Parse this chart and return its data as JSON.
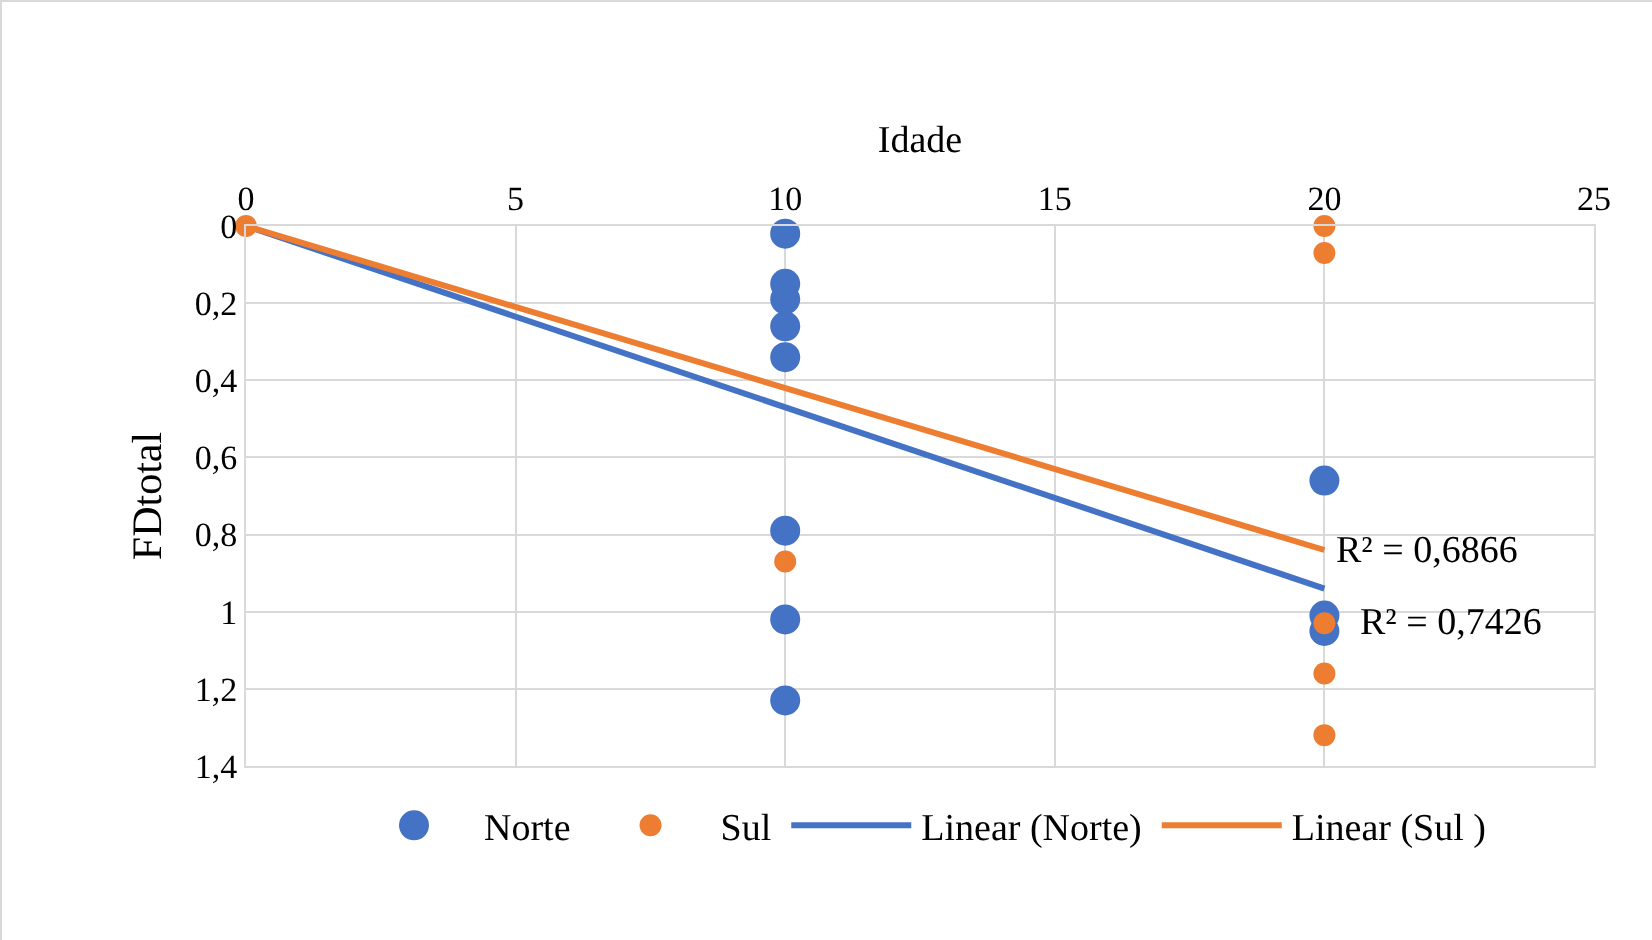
{
  "chart_data": {
    "type": "scatter",
    "xlabel": "Idade",
    "ylabel": "FDtotal",
    "xlim": [
      0,
      25
    ],
    "xticks": [
      0,
      5,
      10,
      15,
      20,
      25
    ],
    "ylim": [
      1.4,
      0
    ],
    "yticks": [
      0,
      {
        "value": 0.2,
        "label": "0,2"
      },
      {
        "value": 0.4,
        "label": "0,4"
      },
      {
        "value": 0.6,
        "label": "0,6"
      },
      {
        "value": 0.8,
        "label": "0,8"
      },
      1,
      {
        "value": 1.2,
        "label": "1,2"
      },
      {
        "value": 1.4,
        "label": "1,4"
      }
    ],
    "grid": true,
    "legend": "bottom",
    "series": [
      {
        "name": "Norte",
        "color": "#4472c4",
        "marker": "circle",
        "x": [
          10,
          10,
          10,
          10,
          10,
          10,
          10,
          10,
          20,
          20,
          20
        ],
        "values": [
          0.02,
          0.15,
          0.19,
          0.26,
          0.34,
          0.79,
          1.02,
          1.23,
          0.66,
          1.01,
          1.05
        ]
      },
      {
        "name": "Sul",
        "color": "#ed7d31",
        "marker": "circle",
        "x": [
          0,
          10,
          20,
          20,
          20,
          20,
          20
        ],
        "values": [
          0,
          0.87,
          0,
          0.07,
          1.03,
          1.16,
          1.32
        ]
      },
      {
        "name": "Linear (Norte)",
        "type": "line",
        "color": "#4472c4",
        "marker": "none",
        "x": [
          0,
          20
        ],
        "values": [
          0,
          0.94
        ]
      },
      {
        "name": "Linear (Sul )",
        "type": "line",
        "color": "#ed7d31",
        "marker": "none",
        "x": [
          0,
          20
        ],
        "values": [
          0,
          0.84
        ]
      }
    ],
    "annotations": [
      {
        "text": "R² = 0,6866",
        "x": 20,
        "y": 0.84
      },
      {
        "text": "R² = 0,7426",
        "x": 20,
        "y": 1.03
      }
    ]
  }
}
